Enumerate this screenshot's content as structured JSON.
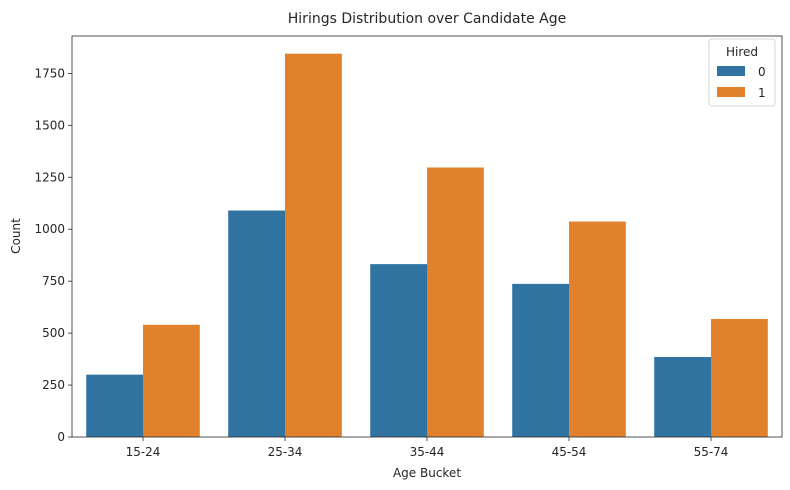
{
  "chart_data": {
    "type": "bar",
    "title": "Hirings Distribution over Candidate Age",
    "xlabel": "Age Bucket",
    "ylabel": "Count",
    "categories": [
      "15-24",
      "25-34",
      "35-44",
      "45-54",
      "55-74"
    ],
    "series": [
      {
        "name": "0",
        "color": "#3274a1",
        "values": [
          300,
          1090,
          832,
          737,
          385
        ]
      },
      {
        "name": "1",
        "color": "#e1812c",
        "values": [
          540,
          1845,
          1297,
          1037,
          568
        ]
      }
    ],
    "ylim": [
      0,
      1930
    ],
    "yticks": [
      0,
      250,
      500,
      750,
      1000,
      1250,
      1500,
      1750
    ],
    "grid": false,
    "legend": {
      "title": "Hired",
      "position": "top-right"
    }
  }
}
